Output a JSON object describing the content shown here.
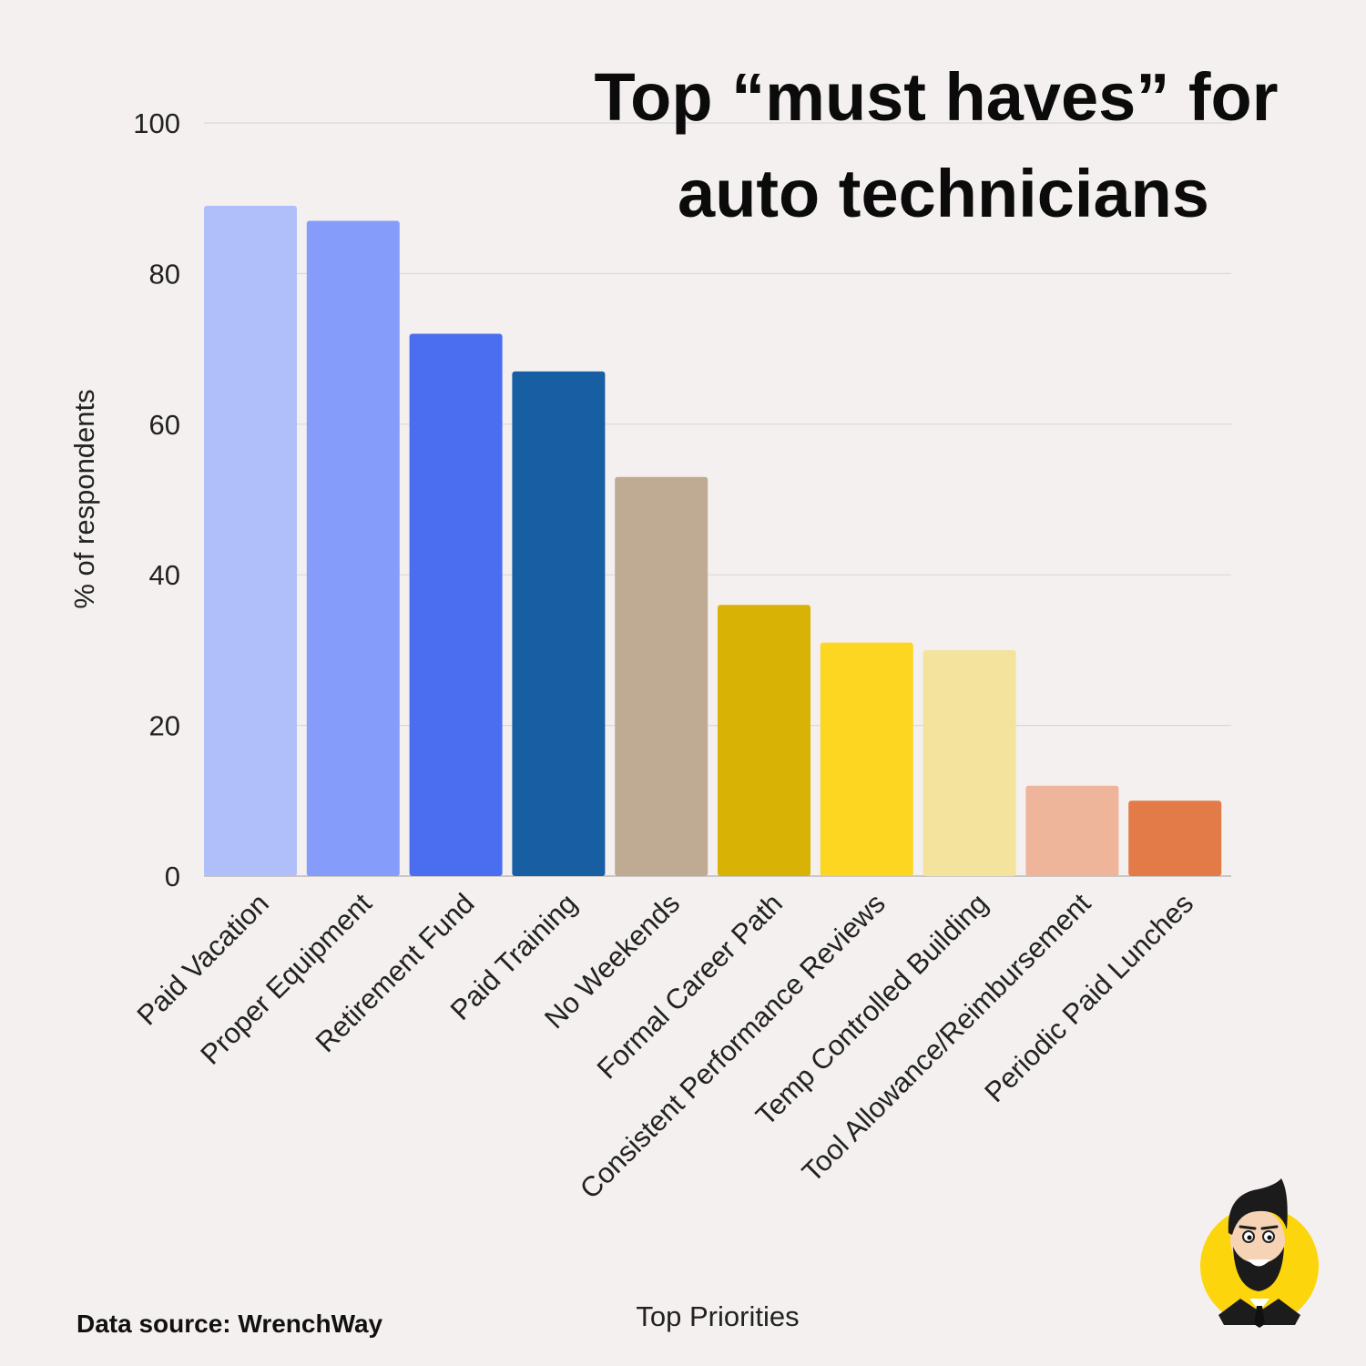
{
  "title": {
    "line1": "Top “must haves” for",
    "line2": "auto technicians"
  },
  "source": "Data source: WrenchWay",
  "colors": {
    "background": "#f4f0ef",
    "grid": "#dcd8d8"
  },
  "logo": {
    "icon": "cartoon-mechanic-avatar-icon"
  },
  "chart_data": {
    "type": "bar",
    "title": "Top “must haves” for auto technicians",
    "xlabel": "Top Priorities",
    "ylabel": "% of respondents",
    "ylim": [
      0,
      100
    ],
    "yticks": [
      0,
      20,
      40,
      60,
      80,
      100
    ],
    "grid": true,
    "legend": "none",
    "categories": [
      "Paid Vacation",
      "Proper Equipment",
      "Retirement Fund",
      "Paid Training",
      "No Weekends",
      "Formal Career Path",
      "Consistent Performance Reviews",
      "Temp Controlled Building",
      "Tool Allowance/Reimbursement",
      "Periodic Paid Lunches"
    ],
    "values": [
      89,
      87,
      72,
      67,
      53,
      36,
      31,
      30,
      12,
      10
    ],
    "bar_colors": [
      "#b0bffa",
      "#869cfb",
      "#4b6ef0",
      "#175ea3",
      "#bfab94",
      "#d8b306",
      "#fdd622",
      "#f4e39c",
      "#efb59a",
      "#e27b47"
    ]
  }
}
